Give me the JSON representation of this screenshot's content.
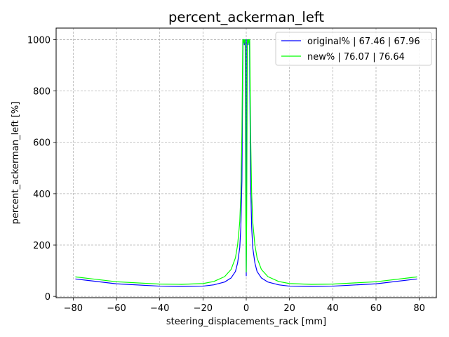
{
  "chart_data": {
    "type": "line",
    "title": "percent_ackerman_left",
    "xlabel": "steering_displacements_rack [mm]",
    "ylabel": "percent_ackerman_left [%]",
    "xlim": [
      -87.9,
      87.9
    ],
    "ylim": [
      -5,
      1045
    ],
    "xticks": [
      -80,
      -60,
      -40,
      -20,
      0,
      20,
      40,
      60,
      80
    ],
    "yticks": [
      0,
      200,
      400,
      600,
      800,
      1000
    ],
    "grid": true,
    "legend_position": "upper right",
    "series": [
      {
        "name": "original% | 67.46 | 67.96",
        "color": "#0000ff",
        "x": [
          -79.0,
          -60,
          -40,
          -30,
          -20,
          -15,
          -10,
          -7,
          -5,
          -4,
          -3,
          -2.5,
          -2,
          -1.5,
          -1.1,
          -0.9,
          -0.6,
          -0.3,
          -0.1,
          0.0,
          0.1,
          0.3,
          0.6,
          0.9,
          1.1,
          1.5,
          2,
          2.5,
          3,
          4,
          5,
          7,
          10,
          15,
          20,
          30,
          40,
          60,
          79.0
        ],
        "y": [
          68,
          49,
          40,
          39,
          40,
          45,
          56,
          72,
          97,
          130,
          190,
          270,
          450,
          1000,
          1000,
          980,
          995,
          1000,
          250,
          80,
          250,
          1000,
          995,
          980,
          1000,
          1000,
          450,
          270,
          190,
          130,
          97,
          72,
          56,
          45,
          40,
          39,
          40,
          49,
          68
        ]
      },
      {
        "name": "new% | 76.07 | 76.64",
        "color": "#00ff00",
        "x": [
          -79.0,
          -60,
          -40,
          -30,
          -20,
          -15,
          -10,
          -7,
          -5,
          -4,
          -3,
          -2.5,
          -2,
          -1.6,
          -1.3,
          -1.0,
          -0.8,
          -0.5,
          -0.2,
          0.0,
          0.2,
          0.5,
          0.8,
          1.0,
          1.3,
          1.6,
          2,
          2.5,
          3,
          4,
          5,
          7,
          10,
          15,
          20,
          30,
          40,
          60,
          79.0
        ],
        "y": [
          76,
          57,
          48,
          47,
          50,
          58,
          77,
          105,
          150,
          200,
          290,
          400,
          640,
          1000,
          1000,
          985,
          1000,
          1000,
          300,
          95,
          300,
          1000,
          1000,
          985,
          1000,
          1000,
          640,
          400,
          290,
          200,
          150,
          105,
          77,
          58,
          50,
          47,
          48,
          57,
          76
        ]
      }
    ]
  }
}
